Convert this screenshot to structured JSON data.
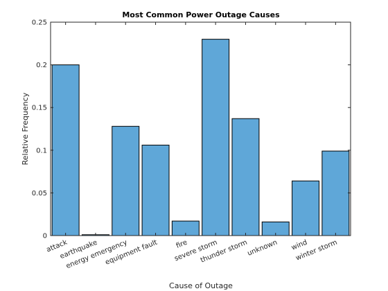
{
  "chart_data": {
    "type": "bar",
    "title": "Most Common Power Outage Causes",
    "xlabel": "Cause of Outage",
    "ylabel": "Relative Frequency",
    "categories": [
      "attack",
      "earthquake",
      "energy emergency",
      "equipment fault",
      "fire",
      "severe storm",
      "thunder storm",
      "unknown",
      "wind",
      "winter storm"
    ],
    "values": [
      0.2,
      0.001,
      0.128,
      0.106,
      0.017,
      0.23,
      0.137,
      0.016,
      0.064,
      0.099
    ],
    "ylim": [
      0,
      0.25
    ],
    "yticks": [
      0,
      0.05,
      0.1,
      0.15,
      0.2,
      0.25
    ],
    "ytick_labels": [
      "0",
      "0.05",
      "0.1",
      "0.15",
      "0.2",
      "0.25"
    ],
    "grid": false,
    "bar_color": "#5fa7d8",
    "edge_color": "#000000"
  }
}
